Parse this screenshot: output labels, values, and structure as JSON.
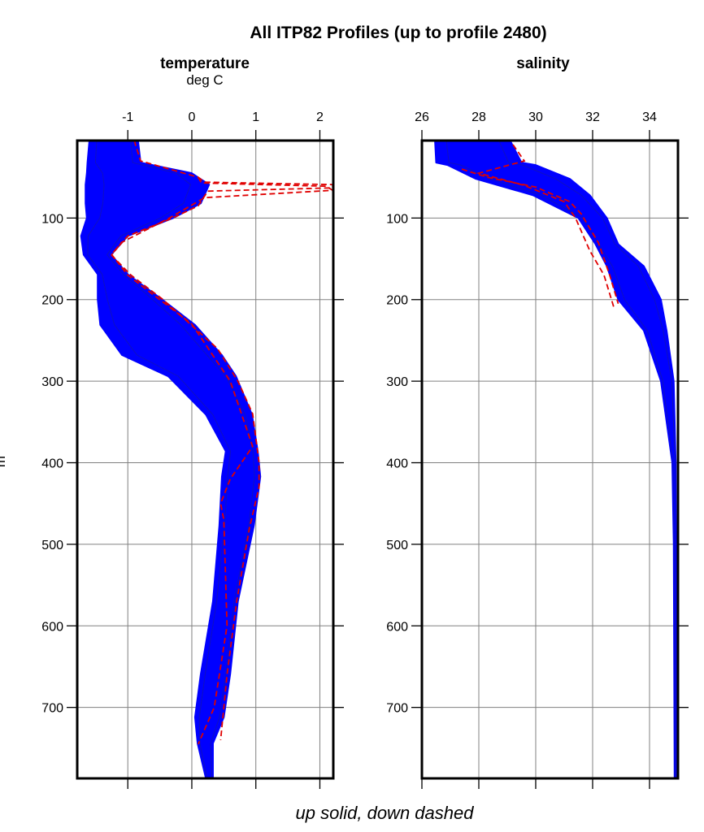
{
  "title": "All ITP82 Profiles (up to profile 2480)",
  "caption": "up solid, down dashed",
  "ylabel": "m",
  "colors": {
    "up": "#0000ff",
    "down": "#e00000",
    "grid": "#808080",
    "frame": "#000000"
  },
  "chart_data": [
    {
      "type": "line",
      "title": "temperature",
      "subtitle": "deg C",
      "xlim": [
        -1.79,
        2.21
      ],
      "ylim": [
        787,
        5
      ],
      "y_reversed": true,
      "xticks": [
        -1,
        0,
        1,
        2
      ],
      "xtick_labels": [
        "-1",
        "0",
        "1",
        "2"
      ],
      "yticks": [
        100,
        200,
        300,
        400,
        500,
        600,
        700
      ],
      "ytick_labels": [
        "100",
        "200",
        "300",
        "400",
        "500",
        "600",
        "700"
      ],
      "grid": true,
      "series": [
        {
          "name": "up solid",
          "style": "solid",
          "kind": "envelope",
          "depth": [
            5,
            32,
            45,
            59,
            82,
            100,
            122,
            145,
            169,
            200,
            231,
            268,
            294,
            341,
            386,
            417,
            477,
            570,
            659,
            712,
            744,
            787
          ],
          "min": [
            -1.6,
            -1.63,
            -1.64,
            -1.66,
            -1.66,
            -1.64,
            -1.73,
            -1.69,
            -1.47,
            -1.47,
            -1.43,
            -1.09,
            -0.37,
            0.22,
            0.53,
            0.47,
            0.43,
            0.33,
            0.14,
            0.05,
            0.09,
            0.22
          ],
          "max": [
            -0.84,
            -0.8,
            0.0,
            0.27,
            0.14,
            -0.29,
            -1.0,
            -1.26,
            -1.0,
            -0.46,
            0.05,
            0.47,
            0.69,
            0.94,
            1.03,
            1.07,
            0.97,
            0.72,
            0.6,
            0.5,
            0.33,
            0.33
          ]
        },
        {
          "name": "down dashed",
          "style": "dashed",
          "kind": "lines",
          "profiles": [
            {
              "depth": [
                5,
                30,
                50,
                56,
                59,
                63,
                67,
                85,
                100,
                122,
                145,
                170,
                200,
                260,
                300,
                340,
                400,
                430,
                480,
                570,
                660,
                740
              ],
              "value": [
                -0.9,
                -0.8,
                0.1,
                0.2,
                2.2,
                2.2,
                0.25,
                0.1,
                -0.3,
                -1.0,
                -1.26,
                -0.95,
                -0.45,
                0.4,
                0.72,
                0.95,
                1.05,
                1.05,
                0.9,
                0.7,
                0.55,
                0.45
              ]
            },
            {
              "depth": [
                50,
                57,
                61,
                66,
                75,
                100,
                130,
                145,
                170,
                230,
                300,
                380,
                420,
                450,
                470,
                600,
                700,
                745
              ],
              "value": [
                0.1,
                0.15,
                2.1,
                2.2,
                0.2,
                -0.35,
                -1.1,
                -1.25,
                -1.0,
                0.0,
                0.6,
                0.95,
                0.6,
                0.45,
                0.5,
                0.55,
                0.35,
                0.1
              ]
            }
          ]
        }
      ]
    },
    {
      "type": "line",
      "title": "salinity",
      "xlim": [
        26,
        35.0
      ],
      "ylim": [
        787,
        5
      ],
      "y_reversed": true,
      "xticks": [
        26,
        28,
        30,
        32,
        34
      ],
      "xtick_labels": [
        "26",
        "28",
        "30",
        "32",
        "34"
      ],
      "yticks": [
        100,
        200,
        300,
        400,
        500,
        600,
        700
      ],
      "ytick_labels": [
        "100",
        "200",
        "300",
        "400",
        "500",
        "600",
        "700"
      ],
      "grid": true,
      "series": [
        {
          "name": "up solid",
          "style": "solid",
          "kind": "envelope",
          "depth": [
            5,
            32,
            35,
            52,
            72,
            100,
            132,
            159,
            200,
            238,
            300,
            400,
            500,
            787
          ],
          "min": [
            26.46,
            26.5,
            26.9,
            27.9,
            29.9,
            31.5,
            32.1,
            32.5,
            32.9,
            33.8,
            34.4,
            34.8,
            34.85,
            34.88
          ],
          "max": [
            29.1,
            29.5,
            30.0,
            31.2,
            31.9,
            32.5,
            32.9,
            33.8,
            34.4,
            34.6,
            34.85,
            34.92,
            34.93,
            34.95
          ]
        },
        {
          "name": "down dashed",
          "style": "dashed",
          "kind": "lines",
          "profiles": [
            {
              "depth": [
                10,
                30,
                45,
                60,
                80,
                100,
                140,
                170,
                210
              ],
              "value": [
                29.2,
                29.6,
                28.0,
                29.6,
                31.0,
                31.4,
                31.9,
                32.4,
                32.75
              ]
            },
            {
              "depth": [
                40,
                50,
                62,
                80,
                95,
                130,
                170,
                205
              ],
              "value": [
                27.4,
                28.3,
                30.0,
                31.2,
                31.6,
                32.2,
                32.6,
                32.9
              ]
            }
          ]
        }
      ]
    }
  ]
}
